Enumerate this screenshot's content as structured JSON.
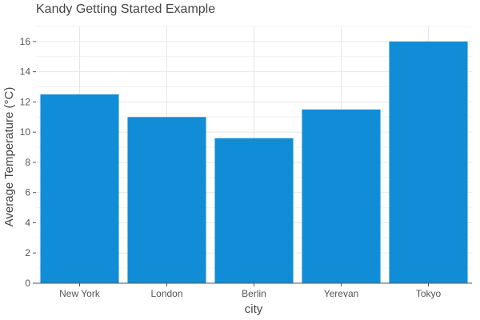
{
  "chart_data": {
    "type": "bar",
    "title": "Kandy Getting Started Example",
    "xlabel": "city",
    "ylabel": "Average Temperature (°C)",
    "categories": [
      "New York",
      "London",
      "Berlin",
      "Yerevan",
      "Tokyo"
    ],
    "values": [
      12.5,
      11.0,
      9.6,
      11.5,
      16.0
    ],
    "ylim": [
      0,
      17
    ],
    "yticks": [
      0,
      2,
      4,
      6,
      8,
      10,
      12,
      14,
      16
    ],
    "grid": true,
    "legend": "none",
    "bar_color": "#118dd8"
  }
}
